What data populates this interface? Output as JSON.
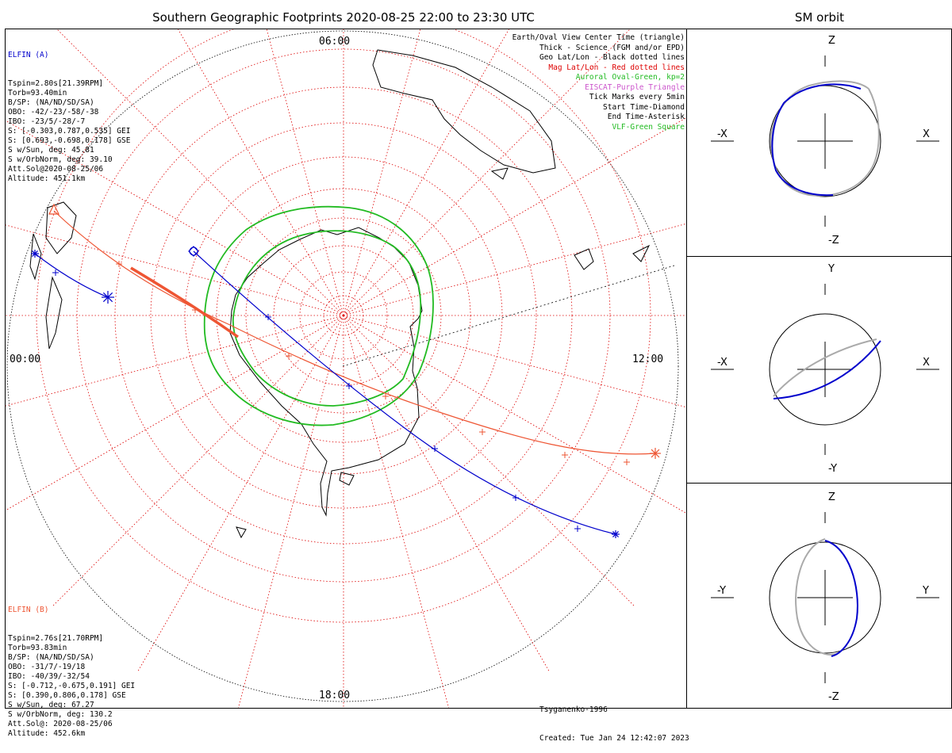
{
  "header": {
    "main_title": "Southern Geographic Footprints 2020-08-25 22:00 to 23:30 UTC",
    "side_title": "SM orbit"
  },
  "elfin_a": {
    "name": "ELFIN (A)",
    "lines": [
      "Tspin=2.80s[21.39RPM]",
      "Torb=93.40min",
      "B/SP: (NA/ND/SD/SA)",
      "OBO: -42/-23/-58/-38",
      "IBO: -23/5/-28/-7",
      "S: [-0.303,0.787,0.535] GEI",
      "S: [0.693,-0.698,0.178] GSE",
      "S w/Sun, deg: 45.81",
      "S w/OrbNorm, deg: 39.10",
      "Att.Sol@2020-08-25/06",
      "Altitude: 451.1km"
    ],
    "color": "#0000cc"
  },
  "elfin_b": {
    "name": "ELFIN (B)",
    "lines": [
      "Tspin=2.76s[21.70RPM]",
      "Torb=93.83min",
      "B/SP: (NA/ND/SD/SA)",
      "OBO: -31/7/-19/18",
      "IBO: -40/39/-32/54",
      "S: [-0.712,-0.675,0.191] GEI",
      "S: [0.390,0.806,0.178] GSE",
      "S w/Sun, deg: 67.27",
      "S w/OrbNorm, deg: 130.2",
      "Att.Sol@: 2020-08-25/06",
      "Altitude: 452.6km"
    ],
    "color": "#ee5533"
  },
  "legend": [
    {
      "text": "Earth/Oval View Center Time (triangle)",
      "color": "#000000"
    },
    {
      "text": "Thick - Science (FGM and/or EPD)",
      "color": "#000000"
    },
    {
      "text": "Geo Lat/Lon - Black dotted lines",
      "color": "#000000"
    },
    {
      "text": "Mag Lat/Lon - Red dotted lines",
      "color": "#dd0000"
    },
    {
      "text": "Auroral Oval-Green, kp=2",
      "color": "#22bb22"
    },
    {
      "text": "EISCAT-Purple Triangle",
      "color": "#cc55cc"
    },
    {
      "text": "Tick Marks every 5min",
      "color": "#000000"
    },
    {
      "text": "Start Time-Diamond",
      "color": "#000000"
    },
    {
      "text": "End Time-Asterisk",
      "color": "#000000"
    },
    {
      "text": "VLF-Green Square",
      "color": "#22bb22"
    }
  ],
  "local_times": {
    "top": "06:00",
    "left": "00:00",
    "right": "12:00",
    "bottom": "18:00"
  },
  "credit": {
    "model": "Tsyganenko-1996",
    "created": "Created: Tue Jan 24 12:42:07 2023"
  },
  "sm_panels": [
    {
      "left": "-X",
      "right": "X",
      "top": "Z",
      "bottom": "-Z"
    },
    {
      "left": "-X",
      "right": "X",
      "top": "Y",
      "bottom": "-Y"
    },
    {
      "left": "-Y",
      "right": "Y",
      "top": "Z",
      "bottom": "-Z"
    }
  ],
  "colors": {
    "elfin_a": "#0000cc",
    "elfin_b": "#ee5533",
    "mag_grid": "#dd0000",
    "oval": "#22bb22",
    "orbit_grey": "#aaaaaa"
  }
}
